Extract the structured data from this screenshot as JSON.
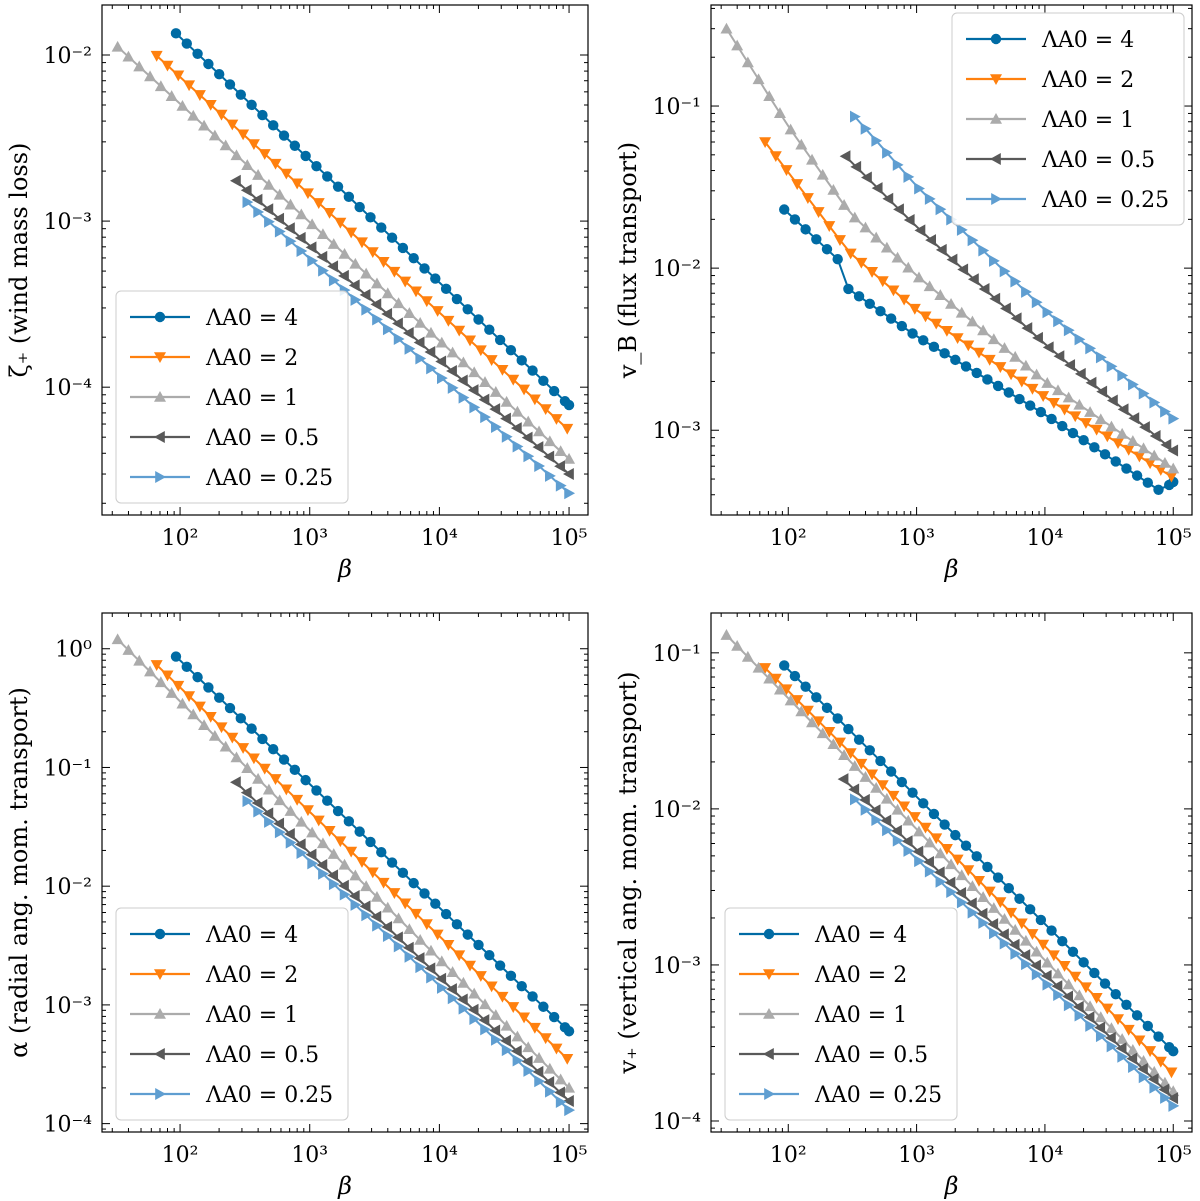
{
  "figure": {
    "colors": {
      "L4": "#006ba4",
      "L2": "#ff800e",
      "L1": "#ababab",
      "L05": "#595959",
      "L025": "#5f9ed1"
    }
  },
  "chart_data": [
    {
      "type": "line",
      "name": "wind-mass-loss",
      "xlabel": "β",
      "ylabel": "ζ₊ (wind mass loss)",
      "xscale": "log",
      "yscale": "log",
      "xlim": [
        25,
        140000
      ],
      "ylim": [
        1.7e-05,
        0.02
      ],
      "xticks": [
        {
          "v": 100,
          "label": "10²"
        },
        {
          "v": 1000,
          "label": "10³"
        },
        {
          "v": 10000,
          "label": "10⁴"
        },
        {
          "v": 100000,
          "label": "10⁵"
        }
      ],
      "yticks": [
        {
          "v": 0.0001,
          "label": "10⁻⁴"
        },
        {
          "v": 0.001,
          "label": "10⁻³"
        },
        {
          "v": 0.01,
          "label": "10⁻²"
        }
      ],
      "legend_position": "lower-left",
      "series": [
        {
          "name": "ΛA0 = 4",
          "marker": "circle",
          "color_key": "L4",
          "points": [
            [
              93,
              0.0135
            ],
            [
              100000,
              7.8e-05
            ]
          ]
        },
        {
          "name": "ΛA0 = 2",
          "marker": "triangle-down",
          "color_key": "L2",
          "points": [
            [
              66,
              0.0099
            ],
            [
              100000,
              5.5e-05
            ]
          ]
        },
        {
          "name": "ΛA0 = 1",
          "marker": "triangle-up",
          "color_key": "L1",
          "points": [
            [
              33,
              0.0112
            ],
            [
              100000,
              3.7e-05
            ]
          ]
        },
        {
          "name": "ΛA0 = 0.5",
          "marker": "triangle-left",
          "color_key": "L05",
          "points": [
            [
              270,
              0.00175
            ],
            [
              100000,
              3e-05
            ]
          ]
        },
        {
          "name": "ΛA0 = 0.25",
          "marker": "triangle-right",
          "color_key": "L025",
          "points": [
            [
              330,
              0.0013
            ],
            [
              100000,
              2.3e-05
            ]
          ]
        }
      ]
    },
    {
      "type": "line",
      "name": "flux-transport",
      "xlabel": "β",
      "ylabel": "v_B (flux transport)",
      "xscale": "log",
      "yscale": "log",
      "xlim": [
        25,
        140000
      ],
      "ylim": [
        0.0003,
        0.42
      ],
      "xticks": [
        {
          "v": 100,
          "label": "10²"
        },
        {
          "v": 1000,
          "label": "10³"
        },
        {
          "v": 10000,
          "label": "10⁴"
        },
        {
          "v": 100000,
          "label": "10⁵"
        }
      ],
      "yticks": [
        {
          "v": 0.001,
          "label": "10⁻³"
        },
        {
          "v": 0.01,
          "label": "10⁻²"
        },
        {
          "v": 0.1,
          "label": "10⁻¹"
        }
      ],
      "legend_position": "upper-right",
      "series": [
        {
          "name": "ΛA0 = 4",
          "marker": "circle",
          "color_key": "L4",
          "points": [
            [
              93,
              0.023
            ],
            [
              270,
              0.0105
            ],
            [
              290,
              0.0075
            ],
            [
              1000,
              0.0038
            ],
            [
              10000,
              0.00125
            ],
            [
              80000,
              0.00042
            ],
            [
              100000,
              0.00048
            ]
          ]
        },
        {
          "name": "ΛA0 = 2",
          "marker": "triangle-down",
          "color_key": "L2",
          "points": [
            [
              66,
              0.06
            ],
            [
              300,
              0.0125
            ],
            [
              1000,
              0.0055
            ],
            [
              10000,
              0.0016
            ],
            [
              100000,
              0.00051
            ]
          ]
        },
        {
          "name": "ΛA0 = 1",
          "marker": "triangle-up",
          "color_key": "L1",
          "points": [
            [
              33,
              0.3
            ],
            [
              100,
              0.075
            ],
            [
              300,
              0.022
            ],
            [
              1000,
              0.009
            ],
            [
              10000,
              0.002
            ],
            [
              100000,
              0.00058
            ]
          ]
        },
        {
          "name": "ΛA0 = 0.5",
          "marker": "triangle-left",
          "color_key": "L05",
          "points": [
            [
              280,
              0.049
            ],
            [
              1000,
              0.018
            ],
            [
              10000,
              0.0034
            ],
            [
              100000,
              0.00075
            ]
          ]
        },
        {
          "name": "ΛA0 = 0.25",
          "marker": "triangle-right",
          "color_key": "L025",
          "points": [
            [
              330,
              0.086
            ],
            [
              1000,
              0.032
            ],
            [
              10000,
              0.0055
            ],
            [
              100000,
              0.00118
            ]
          ]
        }
      ]
    },
    {
      "type": "line",
      "name": "radial-ang-mom-transport",
      "xlabel": "β",
      "ylabel": "α (radial ang. mom. transport)",
      "xscale": "log",
      "yscale": "log",
      "xlim": [
        25,
        140000
      ],
      "ylim": [
        8.5e-05,
        2.0
      ],
      "xticks": [
        {
          "v": 100,
          "label": "10²"
        },
        {
          "v": 1000,
          "label": "10³"
        },
        {
          "v": 10000,
          "label": "10⁴"
        },
        {
          "v": 100000,
          "label": "10⁵"
        }
      ],
      "yticks": [
        {
          "v": 0.0001,
          "label": "10⁻⁴"
        },
        {
          "v": 0.001,
          "label": "10⁻³"
        },
        {
          "v": 0.01,
          "label": "10⁻²"
        },
        {
          "v": 0.1,
          "label": "10⁻¹"
        },
        {
          "v": 1,
          "label": "10⁰"
        }
      ],
      "legend_position": "lower-left",
      "series": [
        {
          "name": "ΛA0 = 4",
          "marker": "circle",
          "color_key": "L4",
          "points": [
            [
              93,
              0.86
            ],
            [
              100000,
              0.0006
            ]
          ]
        },
        {
          "name": "ΛA0 = 2",
          "marker": "triangle-down",
          "color_key": "L2",
          "points": [
            [
              66,
              0.73
            ],
            [
              100000,
              0.00034
            ]
          ]
        },
        {
          "name": "ΛA0 = 1",
          "marker": "triangle-up",
          "color_key": "L1",
          "points": [
            [
              33,
              1.2
            ],
            [
              100000,
              0.0002
            ]
          ]
        },
        {
          "name": "ΛA0 = 0.5",
          "marker": "triangle-left",
          "color_key": "L05",
          "points": [
            [
              270,
              0.075
            ],
            [
              100000,
              0.000155
            ]
          ]
        },
        {
          "name": "ΛA0 = 0.25",
          "marker": "triangle-right",
          "color_key": "L025",
          "points": [
            [
              330,
              0.052
            ],
            [
              100000,
              0.00013
            ]
          ]
        }
      ]
    },
    {
      "type": "line",
      "name": "vertical-ang-mom-transport",
      "xlabel": "β",
      "ylabel": "v₊ (vertical ang. mom. transport)",
      "xscale": "log",
      "yscale": "log",
      "xlim": [
        25,
        140000
      ],
      "ylim": [
        8.5e-05,
        0.18
      ],
      "xticks": [
        {
          "v": 100,
          "label": "10²"
        },
        {
          "v": 1000,
          "label": "10³"
        },
        {
          "v": 10000,
          "label": "10⁴"
        },
        {
          "v": 100000,
          "label": "10⁵"
        }
      ],
      "yticks": [
        {
          "v": 0.0001,
          "label": "10⁻⁴"
        },
        {
          "v": 0.001,
          "label": "10⁻³"
        },
        {
          "v": 0.01,
          "label": "10⁻²"
        },
        {
          "v": 0.1,
          "label": "10⁻¹"
        }
      ],
      "legend_position": "lower-left",
      "series": [
        {
          "name": "ΛA0 = 4",
          "marker": "circle",
          "color_key": "L4",
          "points": [
            [
              93,
              0.083
            ],
            [
              100000,
              0.00028
            ]
          ]
        },
        {
          "name": "ΛA0 = 2",
          "marker": "triangle-down",
          "color_key": "L2",
          "points": [
            [
              66,
              0.08
            ],
            [
              100000,
              0.0002
            ]
          ]
        },
        {
          "name": "ΛA0 = 1",
          "marker": "triangle-up",
          "color_key": "L1",
          "points": [
            [
              33,
              0.13
            ],
            [
              100000,
              0.000155
            ]
          ]
        },
        {
          "name": "ΛA0 = 0.5",
          "marker": "triangle-left",
          "color_key": "L05",
          "points": [
            [
              270,
              0.0155
            ],
            [
              100000,
              0.00014
            ]
          ]
        },
        {
          "name": "ΛA0 = 0.25",
          "marker": "triangle-right",
          "color_key": "L025",
          "points": [
            [
              330,
              0.0115
            ],
            [
              100000,
              0.000125
            ]
          ]
        }
      ]
    }
  ]
}
